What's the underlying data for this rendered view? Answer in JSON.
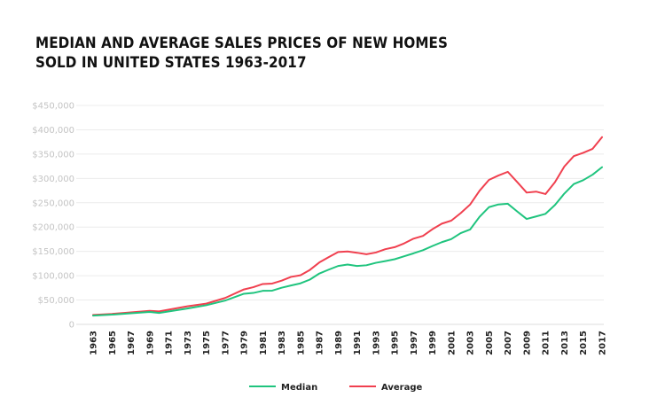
{
  "chart_data": {
    "type": "line",
    "title_line1": "MEDIAN AND AVERAGE SALES PRICES OF NEW HOMES",
    "title_line2": "SOLD IN UNITED STATES 1963-2017",
    "xlabel": "",
    "ylabel": "",
    "ylim": [
      0,
      450000
    ],
    "yticks": [
      {
        "value": 0,
        "label": "0"
      },
      {
        "value": 50000,
        "label": "$50,000"
      },
      {
        "value": 100000,
        "label": "$100,000"
      },
      {
        "value": 150000,
        "label": "$150,000"
      },
      {
        "value": 200000,
        "label": "$200,000"
      },
      {
        "value": 250000,
        "label": "$250,000"
      },
      {
        "value": 300000,
        "label": "$300,000"
      },
      {
        "value": 350000,
        "label": "$350,000"
      },
      {
        "value": 400000,
        "label": "$400,000"
      },
      {
        "value": 450000,
        "label": "$450,000"
      }
    ],
    "xlim": [
      1963,
      2017
    ],
    "xticks": [
      "1963",
      "1965",
      "1967",
      "1969",
      "1971",
      "1973",
      "1975",
      "1977",
      "1979",
      "1981",
      "1983",
      "1985",
      "1987",
      "1989",
      "1991",
      "1993",
      "1995",
      "1997",
      "1999",
      "2001",
      "2003",
      "2005",
      "2007",
      "2009",
      "2011",
      "2013",
      "2015",
      "2017"
    ],
    "grid": true,
    "legend_position": "bottom-center",
    "series": [
      {
        "name": "Median",
        "color": "#1fc47e",
        "points": [
          [
            1963,
            18000
          ],
          [
            1965,
            20000
          ],
          [
            1967,
            22700
          ],
          [
            1969,
            25600
          ],
          [
            1970,
            23400
          ],
          [
            1973,
            32500
          ],
          [
            1975,
            39300
          ],
          [
            1977,
            48800
          ],
          [
            1979,
            62900
          ],
          [
            1980,
            64600
          ],
          [
            1981,
            68900
          ],
          [
            1982,
            69300
          ],
          [
            1983,
            75300
          ],
          [
            1984,
            79900
          ],
          [
            1985,
            84300
          ],
          [
            1986,
            92000
          ],
          [
            1987,
            104500
          ],
          [
            1988,
            112500
          ],
          [
            1989,
            120000
          ],
          [
            1990,
            122900
          ],
          [
            1991,
            120000
          ],
          [
            1992,
            121500
          ],
          [
            1993,
            126500
          ],
          [
            1994,
            130000
          ],
          [
            1995,
            133900
          ],
          [
            1996,
            140000
          ],
          [
            1997,
            146000
          ],
          [
            1998,
            152500
          ],
          [
            1999,
            161000
          ],
          [
            2000,
            169000
          ],
          [
            2001,
            175200
          ],
          [
            2002,
            187600
          ],
          [
            2003,
            195000
          ],
          [
            2004,
            221000
          ],
          [
            2005,
            240900
          ],
          [
            2006,
            246500
          ],
          [
            2007,
            247900
          ],
          [
            2008,
            232100
          ],
          [
            2009,
            216700
          ],
          [
            2010,
            221800
          ],
          [
            2011,
            227200
          ],
          [
            2012,
            245200
          ],
          [
            2013,
            268900
          ],
          [
            2014,
            288500
          ],
          [
            2015,
            296400
          ],
          [
            2016,
            307800
          ],
          [
            2017,
            323100
          ]
        ]
      },
      {
        "name": "Average",
        "color": "#f0404f",
        "points": [
          [
            1963,
            19300
          ],
          [
            1965,
            21500
          ],
          [
            1967,
            24600
          ],
          [
            1969,
            27900
          ],
          [
            1970,
            26600
          ],
          [
            1973,
            37100
          ],
          [
            1975,
            42600
          ],
          [
            1977,
            54200
          ],
          [
            1979,
            71800
          ],
          [
            1980,
            76400
          ],
          [
            1981,
            83000
          ],
          [
            1982,
            83900
          ],
          [
            1983,
            89800
          ],
          [
            1984,
            97600
          ],
          [
            1985,
            100800
          ],
          [
            1986,
            111900
          ],
          [
            1987,
            127200
          ],
          [
            1988,
            138300
          ],
          [
            1989,
            148800
          ],
          [
            1990,
            149800
          ],
          [
            1991,
            147200
          ],
          [
            1992,
            144100
          ],
          [
            1993,
            147700
          ],
          [
            1994,
            154500
          ],
          [
            1995,
            158700
          ],
          [
            1996,
            166400
          ],
          [
            1997,
            176200
          ],
          [
            1998,
            181900
          ],
          [
            1999,
            195600
          ],
          [
            2000,
            207000
          ],
          [
            2001,
            213200
          ],
          [
            2002,
            228700
          ],
          [
            2003,
            246300
          ],
          [
            2004,
            274500
          ],
          [
            2005,
            297000
          ],
          [
            2006,
            305900
          ],
          [
            2007,
            313600
          ],
          [
            2008,
            292600
          ],
          [
            2009,
            270900
          ],
          [
            2010,
            272900
          ],
          [
            2011,
            267900
          ],
          [
            2012,
            292200
          ],
          [
            2013,
            324500
          ],
          [
            2014,
            345800
          ],
          [
            2015,
            352700
          ],
          [
            2016,
            360900
          ],
          [
            2017,
            384900
          ]
        ]
      }
    ]
  }
}
